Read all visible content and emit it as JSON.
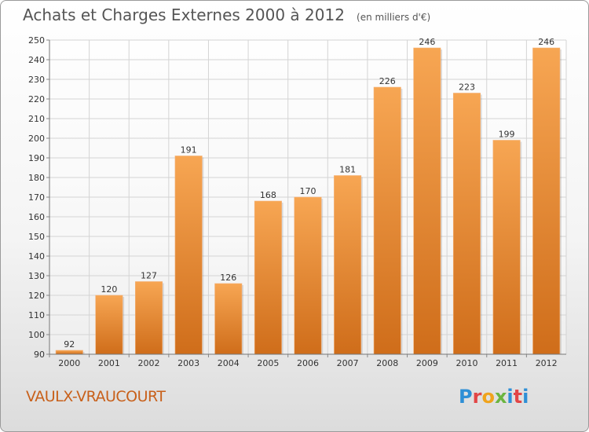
{
  "header": {
    "title": "Achats et Charges Externes 2000 à 2012",
    "unit": "(en milliers d'€)"
  },
  "footer": {
    "city": "VAULX-VRAUCOURT",
    "logo": "Proxiti"
  },
  "colors": {
    "bar_top": "#f7a653",
    "bar_bottom": "#cf6d1a",
    "grid": "#d4d4d4",
    "city_text": "#c8601a"
  },
  "chart_data": {
    "type": "bar",
    "title": "Achats et Charges Externes 2000 à 2012",
    "subtitle": "(en milliers d'€)",
    "xlabel": "",
    "ylabel": "",
    "ylim": [
      90,
      250
    ],
    "yticks": [
      90,
      100,
      110,
      120,
      130,
      140,
      150,
      160,
      170,
      180,
      190,
      200,
      210,
      220,
      230,
      240,
      250
    ],
    "grid": true,
    "categories": [
      "2000",
      "2001",
      "2002",
      "2003",
      "2004",
      "2005",
      "2006",
      "2007",
      "2008",
      "2009",
      "2010",
      "2011",
      "2012"
    ],
    "values": [
      92,
      120,
      127,
      191,
      126,
      168,
      170,
      181,
      226,
      246,
      223,
      199,
      246
    ]
  }
}
